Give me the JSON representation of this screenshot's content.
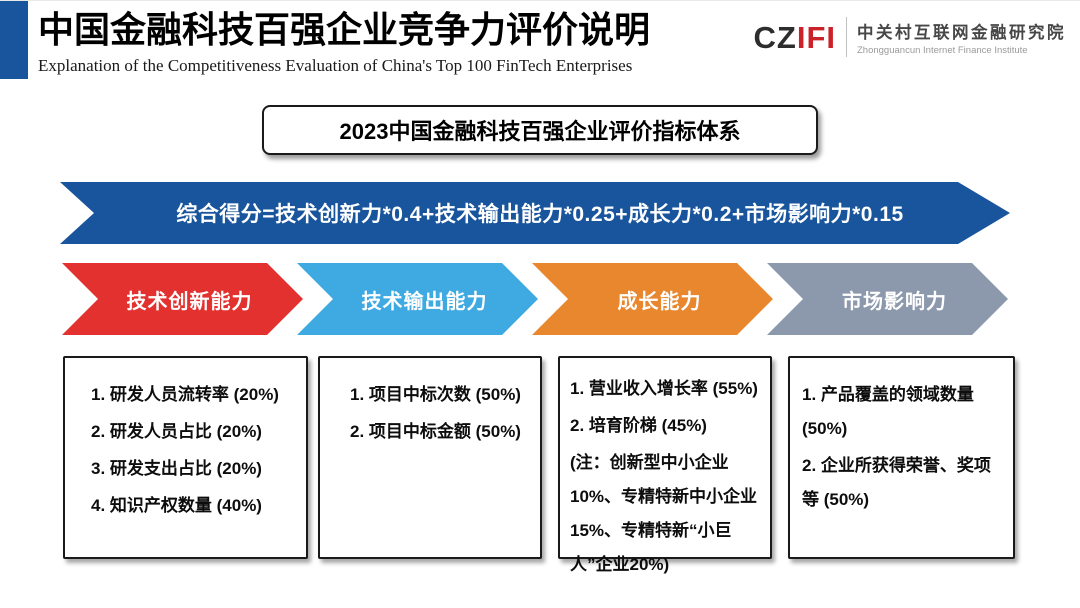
{
  "header": {
    "title": "中国金融科技百强企业竞争力评价说明",
    "subtitle": "Explanation of the Competitiveness Evaluation of China's Top 100 FinTech Enterprises"
  },
  "logo": {
    "wordmark_cz": "CZ",
    "wordmark_ifi": "IFI",
    "org_name_cn": "中关村互联网金融研究院",
    "org_name_en": "Zhongguancun Internet Finance Institute"
  },
  "diagram": {
    "system_title": "2023中国金融科技百强企业评价指标体系",
    "formula": "综合得分=技术创新力*0.4+技术输出能力*0.25+成长力*0.2+市场影响力*0.15",
    "categories": [
      {
        "label": "技术创新能力",
        "color": "#e2312e",
        "items": [
          "1. 研发人员流转率 (20%)",
          "2. 研发人员占比 (20%)",
          "3. 研发支出占比 (20%)",
          "4. 知识产权数量 (40%)"
        ]
      },
      {
        "label": "技术输出能力",
        "color": "#3fa9e1",
        "items": [
          "1. 项目中标次数 (50%)",
          "2. 项目中标金额 (50%)"
        ]
      },
      {
        "label": "成长能力",
        "color": "#e8872e",
        "items": [
          "1. 营业收入增长率 (55%)",
          "2. 培育阶梯 (45%)",
          "(注：创新型中小企业10%、专精特新中小企业15%、专精特新“小巨人”企业20%)"
        ]
      },
      {
        "label": "市场影响力",
        "color": "#8c99ac",
        "items": [
          "1. 产品覆盖的领域数量 (50%)",
          "2. 企业所获得荣誉、奖项等 (50%)"
        ]
      }
    ]
  },
  "colors": {
    "accent_blue": "#19559c",
    "banner_blue": "#19559c",
    "category_red": "#e2312e",
    "category_light_blue": "#3fa9e1",
    "category_orange": "#e8872e",
    "category_gray": "#8c99ac",
    "logo_red": "#cb2128",
    "logo_dark": "#2d2d2d"
  }
}
